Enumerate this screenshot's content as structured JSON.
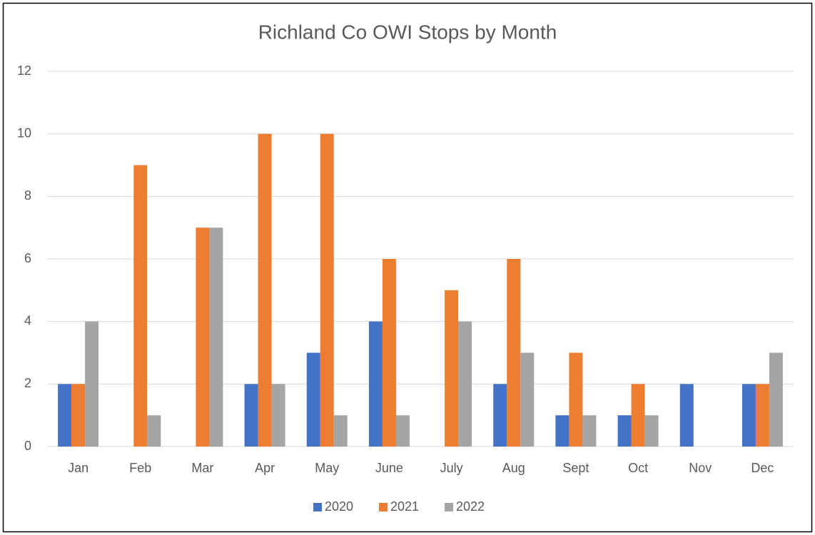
{
  "chart_data": {
    "type": "bar",
    "title": "Richland Co OWI Stops by Month",
    "categories": [
      "Jan",
      "Feb",
      "Mar",
      "Apr",
      "May",
      "June",
      "July",
      "Aug",
      "Sept",
      "Oct",
      "Nov",
      "Dec"
    ],
    "series": [
      {
        "name": "2020",
        "color": "#4472c4",
        "values": [
          2,
          0,
          0,
          2,
          3,
          4,
          0,
          2,
          1,
          1,
          2,
          2
        ]
      },
      {
        "name": "2021",
        "color": "#ed7d31",
        "values": [
          2,
          9,
          7,
          10,
          10,
          6,
          5,
          6,
          3,
          2,
          0,
          2
        ]
      },
      {
        "name": "2022",
        "color": "#a5a5a5",
        "values": [
          4,
          1,
          7,
          2,
          1,
          1,
          4,
          3,
          1,
          1,
          0,
          3
        ]
      }
    ],
    "ylim": [
      0,
      12
    ],
    "yticks": [
      0,
      2,
      4,
      6,
      8,
      10,
      12
    ],
    "grid": true,
    "legend": "bottom"
  }
}
